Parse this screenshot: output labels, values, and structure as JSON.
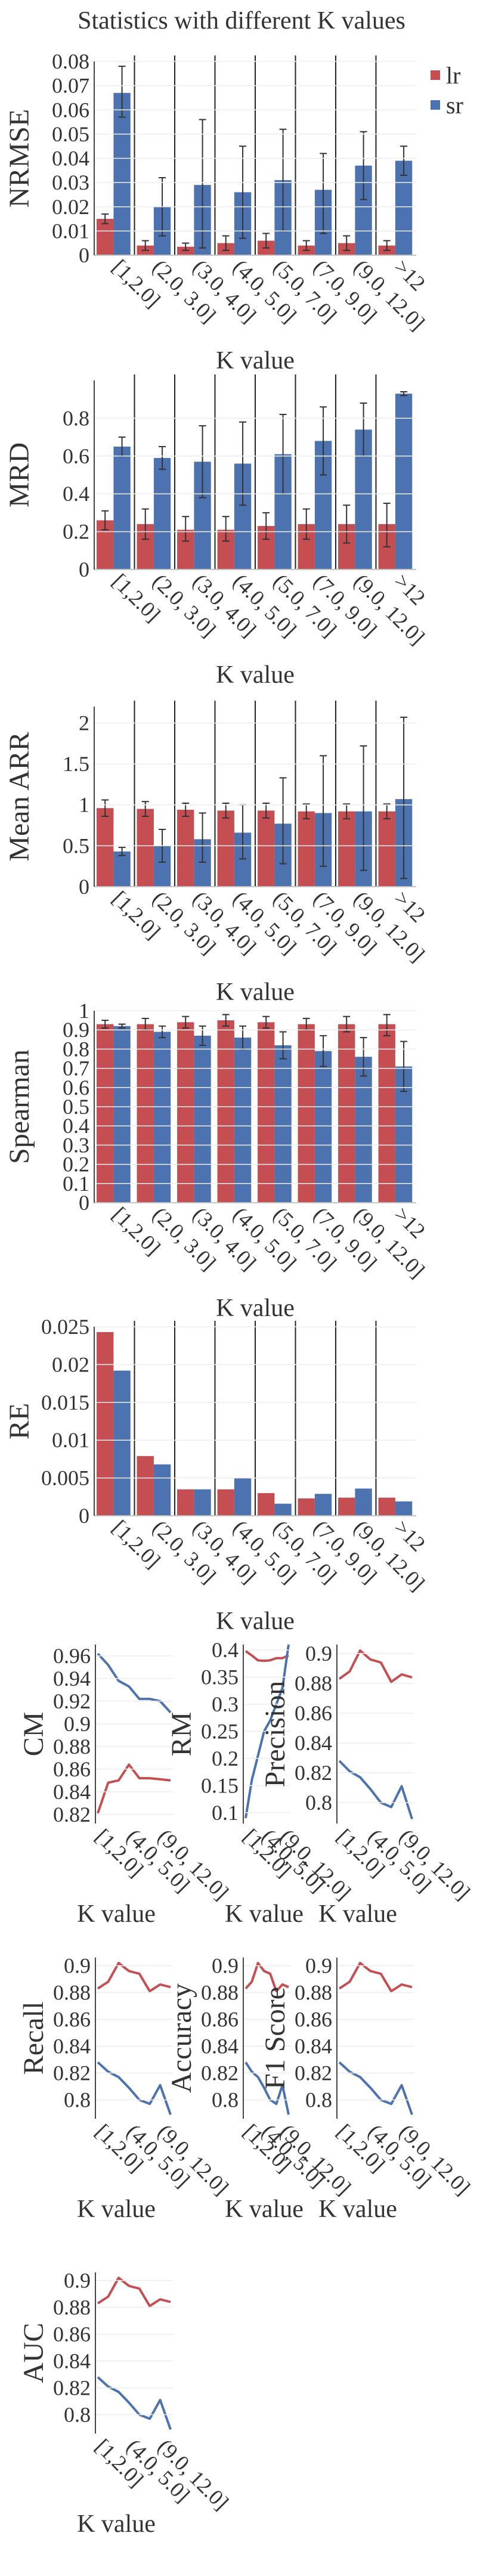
{
  "page_title": "Statistics with different K values",
  "legend": [
    {
      "name": "lr",
      "color": "#c44e52"
    },
    {
      "name": "sr",
      "color": "#4c72b0"
    }
  ],
  "chart_data": [
    {
      "type": "bar",
      "ylabel": "NRMSE",
      "xlabel": "K value",
      "categories": [
        "[1,2.0]",
        "(2.0, 3.0]",
        "(3.0, 4.0]",
        "(4.0, 5.0]",
        "(5.0, 7.0]",
        "(7.0, 9.0]",
        "(9.0, 12.0]",
        ">12"
      ],
      "ylim": [
        0,
        0.08
      ],
      "yticks": [
        "0",
        "0.01",
        "0.02",
        "0.03",
        "0.04",
        "0.05",
        "0.06",
        "0.07",
        "0.08"
      ],
      "series": [
        {
          "name": "lr",
          "values": [
            0.015,
            0.004,
            0.0035,
            0.005,
            0.006,
            0.004,
            0.005,
            0.004
          ],
          "err_low": [
            0.013,
            0.002,
            0.002,
            0.002,
            0.003,
            0.002,
            0.002,
            0.002
          ],
          "err_high": [
            0.017,
            0.006,
            0.005,
            0.008,
            0.009,
            0.006,
            0.008,
            0.006
          ]
        },
        {
          "name": "sr",
          "values": [
            0.067,
            0.02,
            0.029,
            0.026,
            0.031,
            0.027,
            0.037,
            0.039
          ],
          "err_low": [
            0.057,
            0.008,
            0.003,
            0.007,
            0.01,
            0.009,
            0.023,
            0.033
          ],
          "err_high": [
            0.078,
            0.032,
            0.056,
            0.045,
            0.052,
            0.042,
            0.051,
            0.045
          ]
        }
      ],
      "splits": true
    },
    {
      "type": "bar",
      "ylabel": "MRD",
      "xlabel": "K value",
      "categories": [
        "[1,2.0]",
        "(2.0, 3.0]",
        "(3.0, 4.0]",
        "(4.0, 5.0]",
        "(5.0, 7.0]",
        "(7.0, 9.0]",
        "(9.0, 12.0]",
        ">12"
      ],
      "ylim": [
        0,
        1.0
      ],
      "yticks": [
        "0",
        "0.2",
        "0.4",
        "0.6",
        "0.8"
      ],
      "series": [
        {
          "name": "lr",
          "values": [
            0.26,
            0.24,
            0.21,
            0.21,
            0.23,
            0.24,
            0.24,
            0.24
          ],
          "err_low": [
            0.21,
            0.16,
            0.15,
            0.15,
            0.16,
            0.16,
            0.14,
            0.12
          ],
          "err_high": [
            0.31,
            0.32,
            0.28,
            0.28,
            0.3,
            0.32,
            0.34,
            0.35
          ]
        },
        {
          "name": "sr",
          "values": [
            0.65,
            0.59,
            0.57,
            0.56,
            0.61,
            0.68,
            0.74,
            0.93
          ],
          "err_low": [
            0.6,
            0.53,
            0.38,
            0.34,
            0.4,
            0.5,
            0.6,
            0.92
          ],
          "err_high": [
            0.7,
            0.65,
            0.76,
            0.78,
            0.82,
            0.86,
            0.88,
            0.94
          ]
        }
      ],
      "splits": true
    },
    {
      "type": "bar",
      "ylabel": "Mean ARR",
      "xlabel": "K value",
      "categories": [
        "[1,2.0]",
        "(2.0, 3.0]",
        "(3.0, 4.0]",
        "(4.0, 5.0]",
        "(5.0, 7.0]",
        "(7.0, 9.0]",
        "(9.0, 12.0]",
        ">12"
      ],
      "ylim": [
        0,
        2.2
      ],
      "yticks": [
        "0",
        "0.5",
        "1",
        "1.5",
        "2"
      ],
      "series": [
        {
          "name": "lr",
          "values": [
            0.96,
            0.95,
            0.94,
            0.93,
            0.93,
            0.92,
            0.92,
            0.92
          ],
          "err_low": [
            0.86,
            0.86,
            0.86,
            0.84,
            0.84,
            0.83,
            0.83,
            0.83
          ],
          "err_high": [
            1.06,
            1.04,
            1.02,
            1.02,
            1.02,
            1.01,
            1.01,
            1.01
          ]
        },
        {
          "name": "sr",
          "values": [
            0.43,
            0.5,
            0.58,
            0.66,
            0.77,
            0.9,
            0.92,
            1.07
          ],
          "err_low": [
            0.38,
            0.3,
            0.3,
            0.34,
            0.28,
            0.25,
            0.2,
            0.1
          ],
          "err_high": [
            0.48,
            0.7,
            0.9,
            1.0,
            1.33,
            1.6,
            1.72,
            2.07
          ]
        }
      ],
      "splits": true
    },
    {
      "type": "bar",
      "ylabel": "Spearman",
      "xlabel": "K value",
      "categories": [
        "[1,2.0]",
        "(2.0, 3.0]",
        "(3.0, 4.0]",
        "(4.0, 5.0]",
        "(5.0, 7.0]",
        "(7.0, 9.0]",
        "(9.0, 12.0]",
        ">12"
      ],
      "ylim": [
        0,
        1.0
      ],
      "yticks": [
        "0",
        "0.1",
        "0.2",
        "0.3",
        "0.4",
        "0.5",
        "0.6",
        "0.7",
        "0.8",
        "0.9",
        "1"
      ],
      "series": [
        {
          "name": "lr",
          "values": [
            0.93,
            0.93,
            0.94,
            0.95,
            0.94,
            0.93,
            0.93,
            0.93
          ],
          "err_low": [
            0.91,
            0.9,
            0.91,
            0.92,
            0.91,
            0.9,
            0.89,
            0.87
          ],
          "err_high": [
            0.95,
            0.96,
            0.97,
            0.98,
            0.97,
            0.96,
            0.97,
            0.98
          ]
        },
        {
          "name": "sr",
          "values": [
            0.92,
            0.89,
            0.87,
            0.86,
            0.82,
            0.79,
            0.76,
            0.71
          ],
          "err_low": [
            0.91,
            0.86,
            0.82,
            0.8,
            0.75,
            0.71,
            0.66,
            0.58
          ],
          "err_high": [
            0.93,
            0.92,
            0.92,
            0.92,
            0.89,
            0.87,
            0.86,
            0.84
          ]
        }
      ],
      "splits": false
    },
    {
      "type": "bar",
      "ylabel": "RE",
      "xlabel": "K value",
      "categories": [
        "[1,2.0]",
        "(2.0, 3.0]",
        "(3.0, 4.0]",
        "(4.0, 5.0]",
        "(5.0, 7.0]",
        "(7.0, 9.0]",
        "(9.0, 12.0]",
        ">12"
      ],
      "ylim": [
        0,
        0.025
      ],
      "yticks": [
        "0",
        "0.005",
        "0.01",
        "0.015",
        "0.02",
        "0.025"
      ],
      "series": [
        {
          "name": "lr",
          "values": [
            0.0243,
            0.0079,
            0.0035,
            0.0035,
            0.003,
            0.0023,
            0.0024,
            0.0024
          ]
        },
        {
          "name": "sr",
          "values": [
            0.0192,
            0.0068,
            0.0035,
            0.005,
            0.0016,
            0.0029,
            0.0036,
            0.0019
          ]
        }
      ],
      "splits": true
    },
    {
      "type": "line",
      "ylabel": "CM",
      "xlabel": "K value",
      "xticks": [
        "[1,2.0]",
        "(4.0, 5.0]",
        "(9.0, 12.0]"
      ],
      "ylim": [
        0.812,
        0.97
      ],
      "yticks": [
        "0.82",
        "0.84",
        "0.86",
        "0.88",
        "0.9",
        "0.92",
        "0.94",
        "0.96"
      ],
      "series": [
        {
          "name": "lr",
          "values": [
            0.821,
            0.848,
            0.85,
            0.864,
            0.852,
            0.852,
            0.851,
            0.85
          ]
        },
        {
          "name": "sr",
          "values": [
            0.962,
            0.952,
            0.938,
            0.933,
            0.922,
            0.922,
            0.92,
            0.91
          ]
        }
      ]
    },
    {
      "type": "line",
      "ylabel": "RM",
      "xlabel": "K value",
      "xticks": [
        "[1,2.0]",
        "(4.0, 5.0]",
        "(9.0, 12.0]"
      ],
      "ylim": [
        0.08,
        0.41
      ],
      "yticks": [
        "0.1",
        "0.15",
        "0.2",
        "0.25",
        "0.3",
        "0.35",
        "0.4"
      ],
      "series": [
        {
          "name": "lr",
          "values": [
            0.398,
            0.39,
            0.381,
            0.38,
            0.381,
            0.385,
            0.385,
            0.39
          ]
        },
        {
          "name": "sr",
          "values": [
            0.09,
            0.16,
            0.205,
            0.25,
            0.27,
            0.3,
            0.33,
            0.41
          ]
        }
      ]
    },
    {
      "type": "line",
      "ylabel": "Precision",
      "xlabel": "K value",
      "xticks": [
        "[1,2.0]",
        "(4.0, 5.0]",
        "(9.0, 12.0]"
      ],
      "ylim": [
        0.786,
        0.906
      ],
      "yticks": [
        "0.8",
        "0.82",
        "0.84",
        "0.86",
        "0.88",
        "0.9"
      ],
      "series": [
        {
          "name": "lr",
          "values": [
            0.883,
            0.888,
            0.902,
            0.896,
            0.894,
            0.881,
            0.886,
            0.884
          ]
        },
        {
          "name": "sr",
          "values": [
            0.828,
            0.821,
            0.817,
            0.809,
            0.8,
            0.797,
            0.811,
            0.789
          ]
        }
      ]
    },
    {
      "type": "line",
      "ylabel": "Recall",
      "xlabel": "K value",
      "xticks": [
        "[1,2.0]",
        "(4.0, 5.0]",
        "(9.0, 12.0]"
      ],
      "ylim": [
        0.786,
        0.906
      ],
      "yticks": [
        "0.8",
        "0.82",
        "0.84",
        "0.86",
        "0.88",
        "0.9"
      ],
      "series": [
        {
          "name": "lr",
          "values": [
            0.883,
            0.888,
            0.902,
            0.896,
            0.894,
            0.881,
            0.886,
            0.884
          ]
        },
        {
          "name": "sr",
          "values": [
            0.828,
            0.821,
            0.817,
            0.809,
            0.8,
            0.797,
            0.811,
            0.789
          ]
        }
      ]
    },
    {
      "type": "line",
      "ylabel": "Accuracy",
      "xlabel": "K value",
      "xticks": [
        "[1,2.0]",
        "(4.0, 5.0]",
        "(9.0, 12.0]"
      ],
      "ylim": [
        0.786,
        0.906
      ],
      "yticks": [
        "0.8",
        "0.82",
        "0.84",
        "0.86",
        "0.88",
        "0.9"
      ],
      "series": [
        {
          "name": "lr",
          "values": [
            0.883,
            0.888,
            0.902,
            0.896,
            0.894,
            0.881,
            0.886,
            0.884
          ]
        },
        {
          "name": "sr",
          "values": [
            0.828,
            0.821,
            0.817,
            0.809,
            0.8,
            0.797,
            0.811,
            0.789
          ]
        }
      ]
    },
    {
      "type": "line",
      "ylabel": "F1 Score",
      "xlabel": "K value",
      "xticks": [
        "[1,2.0]",
        "(4.0, 5.0]",
        "(9.0, 12.0]"
      ],
      "ylim": [
        0.786,
        0.906
      ],
      "yticks": [
        "0.8",
        "0.82",
        "0.84",
        "0.86",
        "0.88",
        "0.9"
      ],
      "series": [
        {
          "name": "lr",
          "values": [
            0.883,
            0.888,
            0.902,
            0.896,
            0.894,
            0.881,
            0.886,
            0.884
          ]
        },
        {
          "name": "sr",
          "values": [
            0.828,
            0.821,
            0.817,
            0.809,
            0.8,
            0.797,
            0.811,
            0.789
          ]
        }
      ]
    },
    {
      "type": "line",
      "ylabel": "AUC",
      "xlabel": "K value",
      "xticks": [
        "[1,2.0]",
        "(4.0, 5.0]",
        "(9.0, 12.0]"
      ],
      "ylim": [
        0.786,
        0.906
      ],
      "yticks": [
        "0.8",
        "0.82",
        "0.84",
        "0.86",
        "0.88",
        "0.9"
      ],
      "series": [
        {
          "name": "lr",
          "values": [
            0.883,
            0.888,
            0.902,
            0.896,
            0.894,
            0.881,
            0.886,
            0.884
          ]
        },
        {
          "name": "sr",
          "values": [
            0.828,
            0.821,
            0.817,
            0.809,
            0.8,
            0.797,
            0.811,
            0.789
          ]
        }
      ]
    }
  ]
}
